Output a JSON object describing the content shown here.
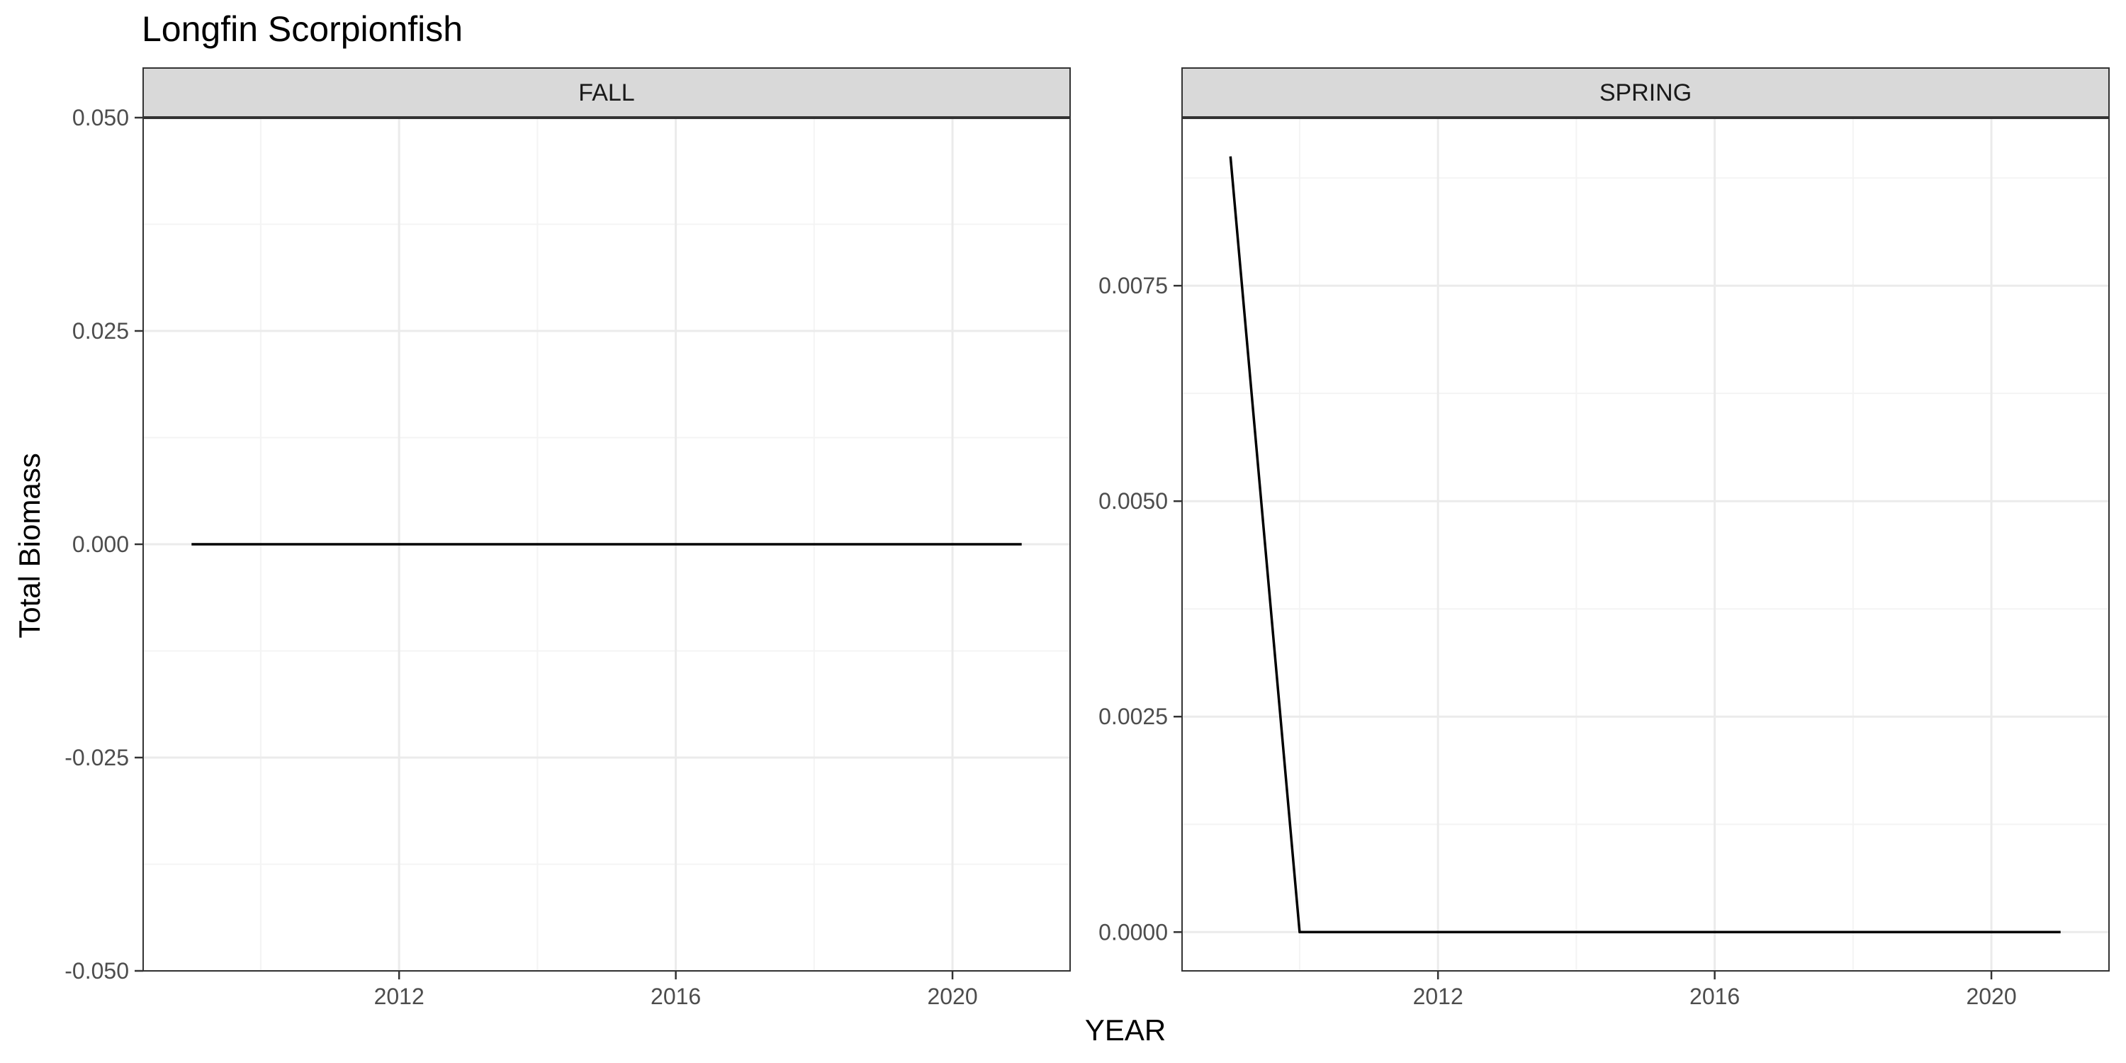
{
  "chart_data": {
    "type": "line",
    "title": "Longfin Scorpionfish",
    "xlabel": "YEAR",
    "ylabel": "Total Biomass",
    "facets": [
      {
        "name": "FALL",
        "x": [
          2009,
          2010,
          2011,
          2012,
          2013,
          2014,
          2015,
          2016,
          2017,
          2018,
          2019,
          2020,
          2021
        ],
        "y": [
          0,
          0,
          0,
          0,
          0,
          0,
          0,
          0,
          0,
          0,
          0,
          0,
          0
        ],
        "xlim": [
          2008.3,
          2021.7
        ],
        "ylim": [
          -0.05,
          0.05
        ],
        "x_ticks": [
          2012,
          2016,
          2020
        ],
        "x_tick_labels": [
          "2012",
          "2016",
          "2020"
        ],
        "y_ticks": [
          -0.05,
          -0.025,
          0,
          0.025,
          0.05
        ],
        "y_tick_labels": [
          "-0.050",
          "-0.025",
          "0.000",
          "0.025",
          "0.050"
        ]
      },
      {
        "name": "SPRING",
        "x": [
          2009,
          2010,
          2011,
          2012,
          2013,
          2014,
          2015,
          2016,
          2017,
          2018,
          2019,
          2020,
          2021
        ],
        "y": [
          0.009,
          0,
          0,
          0,
          0,
          0,
          0,
          0,
          0,
          0,
          0,
          0,
          0
        ],
        "xlim": [
          2008.3,
          2021.7
        ],
        "ylim": [
          -0.00045,
          0.00945
        ],
        "x_ticks": [
          2012,
          2016,
          2020
        ],
        "x_tick_labels": [
          "2012",
          "2016",
          "2020"
        ],
        "y_ticks": [
          0,
          0.0025,
          0.005,
          0.0075
        ],
        "y_tick_labels": [
          "0.0000",
          "0.0025",
          "0.0050",
          "0.0075"
        ]
      }
    ],
    "grid": true,
    "legend": "none",
    "colors": {
      "line": "#000000",
      "strip_fill": "#d9d9d9",
      "grid_major": "#ebebeb",
      "grid_minor": "#f4f4f4",
      "panel_border": "#333333",
      "tick_text": "#4d4d4d"
    }
  }
}
